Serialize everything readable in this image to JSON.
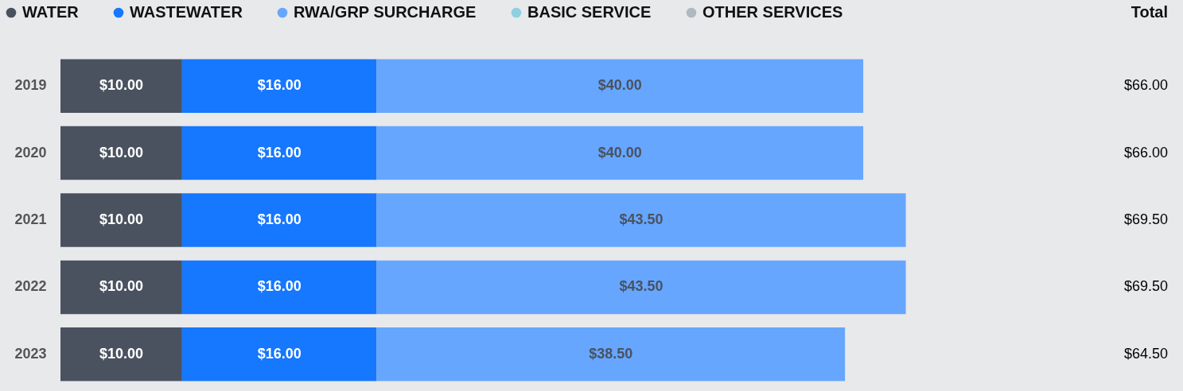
{
  "chart_data": {
    "type": "bar",
    "orientation": "horizontal",
    "stacked": true,
    "legend": "top left",
    "categories": [
      "2019",
      "2020",
      "2021",
      "2022",
      "2023"
    ],
    "series": [
      {
        "name": "WATER",
        "color": "#4a5260",
        "values": [
          10,
          10,
          10,
          10,
          10
        ],
        "value_labels": [
          "$10.00",
          "$10.00",
          "$10.00",
          "$10.00",
          "$10.00"
        ]
      },
      {
        "name": "WASTEWATER",
        "color": "#1677ff",
        "values": [
          16,
          16,
          16,
          16,
          16
        ],
        "value_labels": [
          "$16.00",
          "$16.00",
          "$16.00",
          "$16.00",
          "$16.00"
        ]
      },
      {
        "name": "RWA/GRP SURCHARGE",
        "color": "#66a6ff",
        "values": [
          40,
          40,
          43.5,
          43.5,
          38.5
        ],
        "value_labels": [
          "$40.00",
          "$40.00",
          "$43.50",
          "$43.50",
          "$38.50"
        ]
      },
      {
        "name": "BASIC SERVICE",
        "color": "#8ecfe0",
        "values": [
          null,
          null,
          null,
          null,
          null
        ]
      },
      {
        "name": "OTHER SERVICES",
        "color": "#b0b8c1",
        "values": [
          null,
          null,
          null,
          null,
          null
        ]
      }
    ],
    "annotations": [
      "Total",
      "$66.00",
      "$66.00",
      "$69.50",
      "$69.50",
      "$64.50"
    ]
  }
}
